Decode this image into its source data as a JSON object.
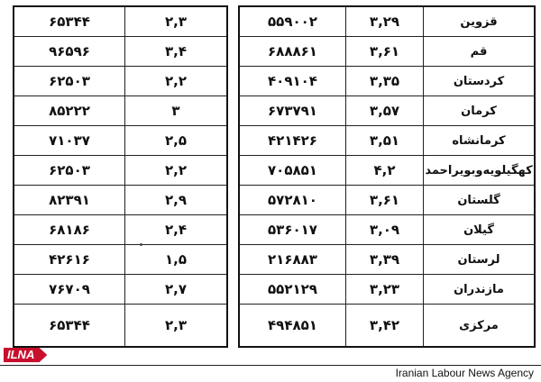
{
  "left_table": {
    "rows": [
      {
        "number": "۶۵۳۴۴",
        "rate": "۲,۳"
      },
      {
        "number": "۹۶۵۹۶",
        "rate": "۳,۴"
      },
      {
        "number": "۶۲۵۰۳",
        "rate": "۲,۲"
      },
      {
        "number": "۸۵۲۲۲",
        "rate": "۳"
      },
      {
        "number": "۷۱۰۳۷",
        "rate": "۲,۵"
      },
      {
        "number": "۶۲۵۰۳",
        "rate": "۲,۲"
      },
      {
        "number": "۸۲۳۹۱",
        "rate": "۲,۹"
      },
      {
        "number": "۶۸۱۸۶",
        "rate": "۲,۴"
      },
      {
        "number": "۴۲۶۱۶",
        "rate": "۱,۵"
      },
      {
        "number": "۷۶۷۰۹",
        "rate": "۲,۷"
      },
      {
        "number": "۶۵۳۴۴",
        "rate": "۲,۳"
      }
    ]
  },
  "right_table": {
    "rows": [
      {
        "number": "۵۵۹۰۰۲",
        "rate": "۳,۲۹",
        "province": "قزوین"
      },
      {
        "number": "۶۸۸۸۶۱",
        "rate": "۳,۶۱",
        "province": "قم"
      },
      {
        "number": "۴۰۹۱۰۴",
        "rate": "۳,۳۵",
        "province": "کردستان"
      },
      {
        "number": "۶۷۳۷۹۱",
        "rate": "۳,۵۷",
        "province": "کرمان"
      },
      {
        "number": "۴۲۱۴۲۶",
        "rate": "۳,۵۱",
        "province": "کرمانشاه"
      },
      {
        "number": "۷۰۵۸۵۱",
        "rate": "۴,۲",
        "province": "کهگیلویه‌وبویراحمد"
      },
      {
        "number": "۵۷۲۸۱۰",
        "rate": "۳,۶۱",
        "province": "گلستان"
      },
      {
        "number": "۵۳۶۰۱۷",
        "rate": "۳,۰۹",
        "province": "گیلان"
      },
      {
        "number": "۲۱۶۸۸۳",
        "rate": "۳,۳۹",
        "province": "لرستان"
      },
      {
        "number": "۵۵۲۱۲۹",
        "rate": "۳,۲۳",
        "province": "مازندران"
      },
      {
        "number": "۴۹۴۸۵۱",
        "rate": "۳,۴۲",
        "province": "مرکزی"
      }
    ]
  },
  "footer": {
    "logo_text": "ILNA",
    "agency_name": "Iranian Labour News Agency"
  },
  "colors": {
    "logo_red": "#c8102e",
    "ink": "#111111"
  }
}
